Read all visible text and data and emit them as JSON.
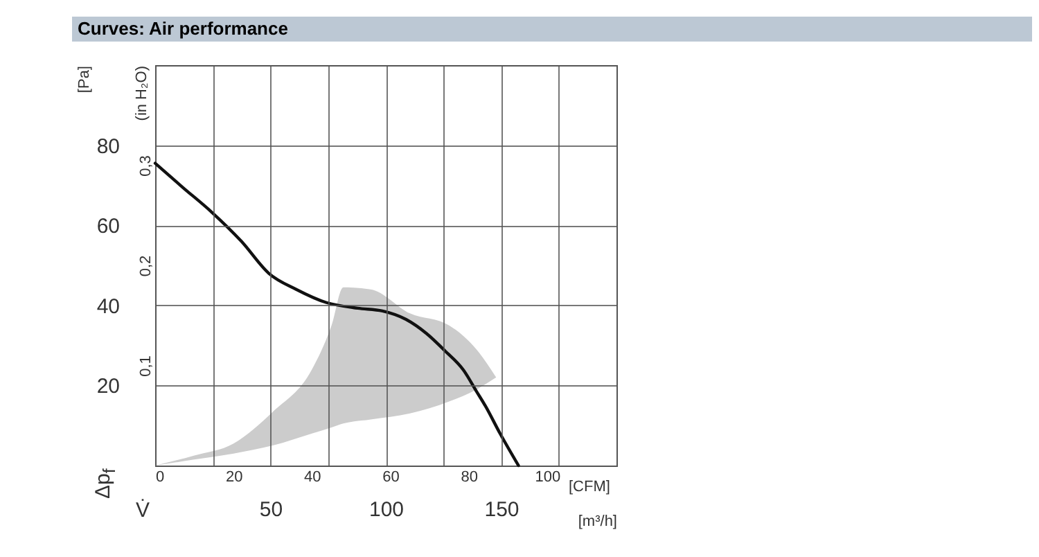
{
  "chart_data": {
    "type": "line",
    "title": "Curves: Air performance",
    "xlabel": "[CFM]",
    "x2label": "[m³/h]",
    "ylabel": "[Pa]",
    "y2label": "(in H₂O)",
    "annotations": [
      "Δp$_{f}$",
      "V̇"
    ],
    "xlim": [
      0,
      117.7
    ],
    "xticks": [
      0,
      20,
      40,
      60,
      80,
      100
    ],
    "x2lim": [
      0,
      200
    ],
    "x2ticks": [
      {
        "value": 25,
        "label": null
      },
      50,
      {
        "value": 75,
        "label": null
      },
      100,
      {
        "value": 125,
        "label": null
      },
      150,
      {
        "value": 175,
        "label": null
      }
    ],
    "ylim": [
      0,
      100
    ],
    "yticks": [
      20,
      40,
      60,
      80
    ],
    "y2lim": [
      0,
      0.4
    ],
    "y2ticks": [
      {
        "value": 0.1,
        "label": "0,1"
      },
      {
        "value": 0.2,
        "label": "0,2"
      },
      {
        "value": 0.3,
        "label": "0,3"
      }
    ],
    "grid": true,
    "marker": "none",
    "line_style": "solid",
    "series": [
      {
        "type": "area",
        "color": "#cccccc",
        "x": [
          0,
          10,
          20,
          30,
          40,
          45,
          48,
          55,
          65,
          75,
          82,
          87
        ],
        "values": [
          null,
          null,
          null,
          null,
          null,
          null,
          null,
          null,
          null,
          null,
          null,
          null
        ],
        "lower": [
          0,
          1.5,
          3,
          5,
          8,
          9.5,
          10.5,
          11.5,
          13,
          16,
          19,
          22
        ],
        "upper": [
          0,
          2.5,
          5.5,
          13.4,
          24,
          35,
          44.5,
          44,
          38,
          35,
          29,
          22
        ]
      },
      {
        "color": "#111111",
        "x": [
          0,
          7,
          14.3,
          22,
          29,
          36,
          43.7,
          51.7,
          58,
          64,
          69.2,
          74,
          78.7,
          82,
          84.3,
          88,
          92.7
        ],
        "values": [
          75.5,
          69.5,
          63.4,
          56,
          48,
          44,
          40.7,
          39.3,
          38.6,
          36.5,
          33,
          28.6,
          23.8,
          18.5,
          14.8,
          8,
          0
        ]
      }
    ]
  }
}
